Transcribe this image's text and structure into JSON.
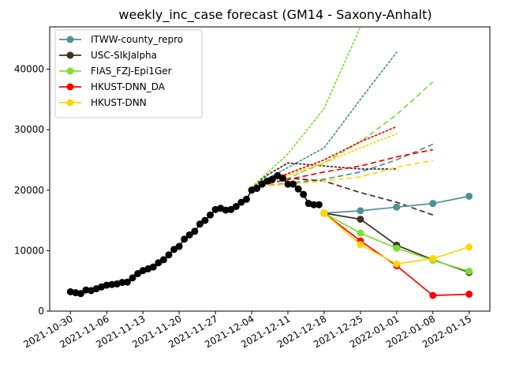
{
  "chart_data": {
    "type": "line",
    "title": "weekly_inc_case forecast (GM14 - Saxony-Anhalt)",
    "xlabel": "",
    "ylabel": "",
    "ylim": [
      0,
      47000
    ],
    "xlim": [
      "2021-10-26",
      "2022-01-19"
    ],
    "yticks": [
      0,
      10000,
      20000,
      30000,
      40000
    ],
    "xticks": [
      "2021-10-30",
      "2021-11-06",
      "2021-11-13",
      "2021-11-20",
      "2021-11-27",
      "2021-12-04",
      "2021-12-11",
      "2021-12-18",
      "2021-12-25",
      "2022-01-01",
      "2022-01-08",
      "2022-01-15"
    ],
    "legend_position": "top-left",
    "grid": false,
    "observed": {
      "color": "#000000",
      "points": [
        [
          "2021-10-30",
          3200
        ],
        [
          "2021-10-31",
          3050
        ],
        [
          "2021-11-01",
          2900
        ],
        [
          "2021-11-02",
          3500
        ],
        [
          "2021-11-03",
          3400
        ],
        [
          "2021-11-04",
          3700
        ],
        [
          "2021-11-05",
          4000
        ],
        [
          "2021-11-06",
          4300
        ],
        [
          "2021-11-07",
          4400
        ],
        [
          "2021-11-08",
          4500
        ],
        [
          "2021-11-09",
          4750
        ],
        [
          "2021-11-10",
          4800
        ],
        [
          "2021-11-11",
          5500
        ],
        [
          "2021-11-12",
          6200
        ],
        [
          "2021-11-13",
          6700
        ],
        [
          "2021-11-14",
          7000
        ],
        [
          "2021-11-15",
          7300
        ],
        [
          "2021-11-16",
          8000
        ],
        [
          "2021-11-17",
          8500
        ],
        [
          "2021-11-18",
          9300
        ],
        [
          "2021-11-19",
          10200
        ],
        [
          "2021-11-20",
          10700
        ],
        [
          "2021-11-21",
          11900
        ],
        [
          "2021-11-22",
          12600
        ],
        [
          "2021-11-23",
          13200
        ],
        [
          "2021-11-24",
          14400
        ],
        [
          "2021-11-25",
          15000
        ],
        [
          "2021-11-26",
          15900
        ],
        [
          "2021-11-27",
          16800
        ],
        [
          "2021-11-28",
          17000
        ],
        [
          "2021-11-29",
          16700
        ],
        [
          "2021-11-30",
          16800
        ],
        [
          "2021-12-01",
          17300
        ],
        [
          "2021-12-02",
          18000
        ],
        [
          "2021-12-03",
          18500
        ],
        [
          "2021-12-04",
          20000
        ],
        [
          "2021-12-05",
          20300
        ],
        [
          "2021-12-06",
          21000
        ],
        [
          "2021-12-07",
          21500
        ],
        [
          "2021-12-08",
          21800
        ],
        [
          "2021-12-09",
          22400
        ],
        [
          "2021-12-10",
          22000
        ],
        [
          "2021-12-11",
          21000
        ],
        [
          "2021-12-12",
          21000
        ],
        [
          "2021-12-13",
          20200
        ],
        [
          "2021-12-14",
          19300
        ],
        [
          "2021-12-15",
          17800
        ],
        [
          "2021-12-16",
          17600
        ],
        [
          "2021-12-17",
          17600
        ]
      ]
    },
    "series": [
      {
        "name": "ITWW-county_repro",
        "color": "#4f9191",
        "x": [
          "2021-12-18",
          "2021-12-25",
          "2022-01-01",
          "2022-01-08",
          "2022-01-15"
        ],
        "values": [
          16200,
          16600,
          17200,
          17800,
          19000
        ],
        "upper_dotted": {
          "x": [
            "2021-12-04",
            "2021-12-18",
            "2021-12-25",
            "2022-01-01"
          ],
          "values": [
            20500,
            27000,
            35000,
            42800
          ]
        },
        "upper_dashed": {
          "x": [
            "2021-12-04",
            "2021-12-18",
            "2021-12-25",
            "2022-01-01",
            "2022-01-08"
          ],
          "values": [
            20500,
            21800,
            23000,
            25000,
            27600
          ]
        }
      },
      {
        "name": "USC-SIkJalpha",
        "color": "#3e3129",
        "x": [
          "2021-12-18",
          "2021-12-25",
          "2022-01-01",
          "2022-01-08",
          "2022-01-15"
        ],
        "values": [
          16200,
          15200,
          10900,
          8500,
          6400
        ],
        "upper_dotted": {
          "x": [
            "2021-12-04",
            "2021-12-07",
            "2021-12-11",
            "2021-12-18",
            "2021-12-25",
            "2022-01-01"
          ],
          "values": [
            20500,
            22500,
            24500,
            24000,
            23500,
            23500
          ]
        },
        "upper_dashed": {
          "x": [
            "2021-12-04",
            "2021-12-11",
            "2021-12-18",
            "2021-12-25",
            "2022-01-01",
            "2022-01-08"
          ],
          "values": [
            20500,
            22000,
            21500,
            19600,
            18000,
            15900
          ]
        }
      },
      {
        "name": "FIAS_FZJ-Epi1Ger",
        "color": "#7fe02f",
        "x": [
          "2021-12-18",
          "2021-12-25",
          "2022-01-01",
          "2022-01-08",
          "2022-01-15"
        ],
        "values": [
          16200,
          12900,
          10400,
          8400,
          6600
        ],
        "upper_dotted": {
          "x": [
            "2021-12-04",
            "2021-12-11",
            "2021-12-18",
            "2021-12-25"
          ],
          "values": [
            20500,
            26000,
            33500,
            47000
          ]
        },
        "upper_dashed": {
          "x": [
            "2021-12-04",
            "2021-12-11",
            "2021-12-18",
            "2021-12-25",
            "2022-01-01",
            "2022-01-08"
          ],
          "values": [
            20500,
            22000,
            24500,
            28000,
            32500,
            37900
          ]
        }
      },
      {
        "name": "HKUST-DNN_DA",
        "color": "#ff0000",
        "x": [
          "2021-12-18",
          "2021-12-25",
          "2022-01-01",
          "2022-01-08",
          "2022-01-15"
        ],
        "values": [
          16200,
          11600,
          7500,
          2600,
          2800
        ],
        "upper_dotted": {
          "x": [
            "2021-12-04",
            "2021-12-18",
            "2021-12-25",
            "2022-01-01"
          ],
          "values": [
            20500,
            25000,
            28000,
            30500
          ]
        },
        "upper_dashed": {
          "x": [
            "2021-12-04",
            "2021-12-18",
            "2021-12-25",
            "2022-01-01",
            "2022-01-08"
          ],
          "values": [
            20500,
            23000,
            24000,
            25500,
            26700
          ]
        }
      },
      {
        "name": "HKUST-DNN",
        "color": "#ffd700",
        "x": [
          "2021-12-18",
          "2021-12-25",
          "2022-01-01",
          "2022-01-08",
          "2022-01-15"
        ],
        "values": [
          16200,
          11000,
          7800,
          8700,
          10600
        ],
        "upper_dotted": {
          "x": [
            "2021-12-04",
            "2021-12-18",
            "2021-12-25",
            "2022-01-01"
          ],
          "values": [
            20500,
            24500,
            27000,
            29300
          ]
        },
        "upper_dashed": {
          "x": [
            "2021-12-04",
            "2021-12-18",
            "2021-12-25",
            "2022-01-01",
            "2022-01-08"
          ],
          "values": [
            20500,
            21500,
            22200,
            23800,
            24900
          ]
        }
      }
    ]
  }
}
